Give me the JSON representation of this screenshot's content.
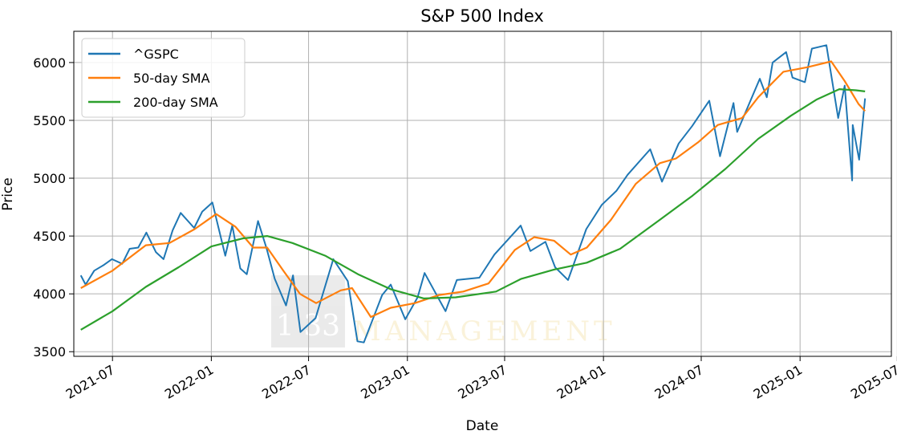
{
  "chart_data": {
    "type": "line",
    "title": "S&P 500 Index",
    "xlabel": "Date",
    "ylabel": "Price",
    "x_range": [
      "2021-04-20",
      "2025-06-20"
    ],
    "ylim": [
      3460,
      6270
    ],
    "grid": true,
    "legend_position": "top-left",
    "x_ticks": [
      "2021-07",
      "2022-01",
      "2022-07",
      "2023-01",
      "2023-07",
      "2024-01",
      "2024-07",
      "2025-01",
      "2025-07"
    ],
    "y_ticks": [
      3500,
      4000,
      4500,
      5000,
      5500,
      6000
    ],
    "x_tick_labels": [
      "2021-07",
      "2022-01",
      "2022-07",
      "2023-01",
      "2023-07",
      "2024-01",
      "2024-07",
      "2025-01",
      "2025-07"
    ],
    "y_tick_labels": [
      "3500",
      "4000",
      "4500",
      "5000",
      "5500",
      "6000"
    ],
    "watermark": {
      "mark": "1 33",
      "text": "MANAGEMENT"
    },
    "series": [
      {
        "name": "^GSPC",
        "color": "#1f77b4",
        "points": [
          [
            "2021-05-03",
            4160
          ],
          [
            "2021-05-12",
            4080
          ],
          [
            "2021-05-28",
            4200
          ],
          [
            "2021-06-15",
            4250
          ],
          [
            "2021-06-30",
            4300
          ],
          [
            "2021-07-19",
            4260
          ],
          [
            "2021-08-02",
            4390
          ],
          [
            "2021-08-18",
            4400
          ],
          [
            "2021-09-02",
            4530
          ],
          [
            "2021-09-20",
            4360
          ],
          [
            "2021-10-04",
            4300
          ],
          [
            "2021-10-21",
            4550
          ],
          [
            "2021-11-05",
            4700
          ],
          [
            "2021-11-30",
            4570
          ],
          [
            "2021-12-15",
            4710
          ],
          [
            "2022-01-03",
            4790
          ],
          [
            "2022-01-27",
            4330
          ],
          [
            "2022-02-09",
            4590
          ],
          [
            "2022-02-24",
            4220
          ],
          [
            "2022-03-08",
            4170
          ],
          [
            "2022-03-29",
            4630
          ],
          [
            "2022-04-14",
            4390
          ],
          [
            "2022-04-29",
            4130
          ],
          [
            "2022-05-20",
            3900
          ],
          [
            "2022-06-02",
            4160
          ],
          [
            "2022-06-16",
            3670
          ],
          [
            "2022-07-14",
            3790
          ],
          [
            "2022-08-16",
            4300
          ],
          [
            "2022-09-12",
            4110
          ],
          [
            "2022-09-30",
            3590
          ],
          [
            "2022-10-12",
            3580
          ],
          [
            "2022-11-15",
            3990
          ],
          [
            "2022-12-01",
            4080
          ],
          [
            "2022-12-28",
            3780
          ],
          [
            "2023-01-20",
            3970
          ],
          [
            "2023-02-02",
            4180
          ],
          [
            "2023-03-13",
            3850
          ],
          [
            "2023-04-03",
            4120
          ],
          [
            "2023-05-15",
            4140
          ],
          [
            "2023-06-12",
            4340
          ],
          [
            "2023-07-31",
            4590
          ],
          [
            "2023-08-18",
            4370
          ],
          [
            "2023-09-15",
            4450
          ],
          [
            "2023-10-03",
            4230
          ],
          [
            "2023-10-27",
            4120
          ],
          [
            "2023-11-30",
            4560
          ],
          [
            "2023-12-29",
            4770
          ],
          [
            "2024-01-25",
            4890
          ],
          [
            "2024-02-15",
            5030
          ],
          [
            "2024-03-28",
            5250
          ],
          [
            "2024-04-19",
            4970
          ],
          [
            "2024-05-20",
            5300
          ],
          [
            "2024-06-14",
            5450
          ],
          [
            "2024-07-16",
            5670
          ],
          [
            "2024-08-05",
            5190
          ],
          [
            "2024-08-30",
            5650
          ],
          [
            "2024-09-06",
            5400
          ],
          [
            "2024-10-18",
            5860
          ],
          [
            "2024-10-31",
            5700
          ],
          [
            "2024-11-11",
            6000
          ],
          [
            "2024-12-06",
            6090
          ],
          [
            "2024-12-18",
            5870
          ],
          [
            "2025-01-10",
            5830
          ],
          [
            "2025-01-23",
            6120
          ],
          [
            "2025-02-19",
            6150
          ],
          [
            "2025-03-13",
            5520
          ],
          [
            "2025-03-25",
            5800
          ],
          [
            "2025-04-08",
            4980
          ],
          [
            "2025-04-09",
            5460
          ],
          [
            "2025-04-21",
            5160
          ],
          [
            "2025-05-02",
            5690
          ]
        ]
      },
      {
        "name": "50-day SMA",
        "color": "#ff7f0e",
        "points": [
          [
            "2021-05-03",
            4050
          ],
          [
            "2021-07-01",
            4200
          ],
          [
            "2021-09-01",
            4420
          ],
          [
            "2021-10-15",
            4440
          ],
          [
            "2021-12-01",
            4560
          ],
          [
            "2022-01-10",
            4690
          ],
          [
            "2022-02-15",
            4580
          ],
          [
            "2022-03-20",
            4400
          ],
          [
            "2022-04-15",
            4400
          ],
          [
            "2022-05-15",
            4200
          ],
          [
            "2022-06-15",
            4000
          ],
          [
            "2022-07-15",
            3920
          ],
          [
            "2022-08-30",
            4030
          ],
          [
            "2022-09-20",
            4050
          ],
          [
            "2022-10-25",
            3800
          ],
          [
            "2022-12-01",
            3880
          ],
          [
            "2023-01-15",
            3920
          ],
          [
            "2023-03-01",
            3990
          ],
          [
            "2023-04-15",
            4020
          ],
          [
            "2023-06-01",
            4090
          ],
          [
            "2023-07-20",
            4380
          ],
          [
            "2023-08-25",
            4490
          ],
          [
            "2023-10-01",
            4460
          ],
          [
            "2023-11-01",
            4340
          ],
          [
            "2023-12-01",
            4400
          ],
          [
            "2024-01-15",
            4640
          ],
          [
            "2024-03-01",
            4950
          ],
          [
            "2024-04-15",
            5130
          ],
          [
            "2024-05-15",
            5170
          ],
          [
            "2024-06-25",
            5310
          ],
          [
            "2024-08-01",
            5460
          ],
          [
            "2024-09-15",
            5520
          ],
          [
            "2024-10-15",
            5700
          ],
          [
            "2024-12-01",
            5920
          ],
          [
            "2025-01-15",
            5960
          ],
          [
            "2025-02-28",
            6010
          ],
          [
            "2025-03-25",
            5840
          ],
          [
            "2025-04-20",
            5640
          ],
          [
            "2025-05-02",
            5580
          ]
        ]
      },
      {
        "name": "200-day SMA",
        "color": "#2ca02c",
        "points": [
          [
            "2021-05-03",
            3690
          ],
          [
            "2021-07-01",
            3850
          ],
          [
            "2021-09-01",
            4060
          ],
          [
            "2021-11-01",
            4230
          ],
          [
            "2022-01-01",
            4410
          ],
          [
            "2022-03-01",
            4480
          ],
          [
            "2022-04-15",
            4500
          ],
          [
            "2022-06-01",
            4440
          ],
          [
            "2022-08-01",
            4330
          ],
          [
            "2022-10-01",
            4170
          ],
          [
            "2022-12-01",
            4040
          ],
          [
            "2023-02-01",
            3960
          ],
          [
            "2023-04-01",
            3970
          ],
          [
            "2023-06-15",
            4020
          ],
          [
            "2023-08-01",
            4130
          ],
          [
            "2023-10-01",
            4210
          ],
          [
            "2023-12-01",
            4270
          ],
          [
            "2024-02-01",
            4390
          ],
          [
            "2024-04-15",
            4640
          ],
          [
            "2024-06-15",
            4850
          ],
          [
            "2024-08-15",
            5080
          ],
          [
            "2024-10-15",
            5340
          ],
          [
            "2024-12-15",
            5540
          ],
          [
            "2025-02-01",
            5680
          ],
          [
            "2025-03-15",
            5770
          ],
          [
            "2025-04-15",
            5760
          ],
          [
            "2025-05-02",
            5750
          ]
        ]
      }
    ]
  }
}
